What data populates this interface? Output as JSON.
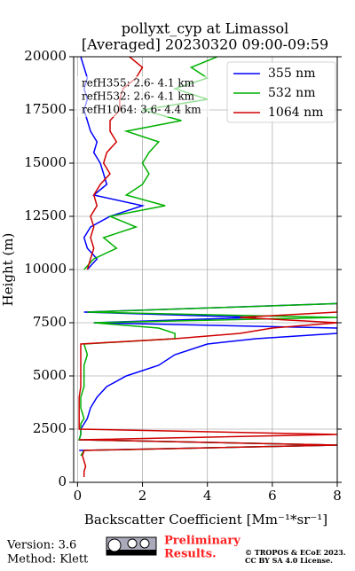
{
  "chart_data": {
    "type": "line",
    "orientation": "vertical",
    "title": "pollyxt_cyp at Limassol",
    "subtitle": "[Averaged] 20230320 09:00-09:59",
    "xlabel": "Backscatter Coefficient [Mm⁻¹*sr⁻¹]",
    "ylabel": "Height (m)",
    "xlim": [
      -0.12,
      8
    ],
    "xticks": [
      0,
      2,
      4,
      6,
      8
    ],
    "ylim": [
      0,
      20000
    ],
    "yticks": [
      0,
      2500,
      5000,
      7500,
      10000,
      12500,
      15000,
      17500,
      20000
    ],
    "grid": true,
    "legend": "upper right",
    "y": [
      250,
      500,
      750,
      1000,
      1250,
      1500,
      1750,
      2000,
      2250,
      2500,
      2750,
      3000,
      3500,
      4000,
      4500,
      5000,
      5500,
      6000,
      6500,
      6750,
      7000,
      7250,
      7500,
      7750,
      8000,
      8400,
      8750,
      10000,
      10500,
      11000,
      11500,
      12000,
      12500,
      13000,
      13500,
      14000,
      14500,
      15000,
      15500,
      16000,
      16500,
      17000,
      17500,
      18000,
      18500,
      19000,
      19500,
      20000
    ],
    "series": [
      {
        "name": "355 nm",
        "color": "#0000ff",
        "values": [
          null,
          null,
          null,
          null,
          null,
          0.05,
          8,
          0.05,
          0.1,
          0.1,
          0.2,
          0.3,
          0.4,
          0.6,
          0.9,
          1.5,
          2.5,
          3,
          4,
          5.5,
          8,
          8,
          0.5,
          5.5,
          0.2,
          8,
          null,
          0.3,
          0.6,
          0.3,
          0.2,
          0.4,
          1.0,
          2.0,
          0.5,
          0.9,
          0.8,
          0.7,
          0.5,
          0.6,
          0.4,
          0.3,
          0.2,
          0.3,
          0.2,
          0.3,
          0.2,
          0.1
        ]
      },
      {
        "name": "532 nm",
        "color": "#00b000",
        "values": [
          null,
          null,
          null,
          null,
          0.1,
          0.2,
          8,
          0.05,
          0.1,
          0.1,
          0.1,
          0.2,
          0.1,
          0.1,
          0.2,
          0.2,
          0.2,
          0.3,
          0.2,
          3,
          3,
          2.5,
          0.5,
          8,
          0.3,
          8,
          null,
          0.2,
          0.5,
          1.2,
          0.8,
          1.8,
          1.0,
          2.7,
          1.5,
          2.0,
          2.2,
          2.0,
          2.2,
          2.5,
          1.5,
          3.2,
          2.0,
          4.0,
          3.0,
          4.0,
          3.5,
          4.3
        ]
      },
      {
        "name": "1064 nm",
        "color": "#d00000",
        "values": [
          0.2,
          0.2,
          0.25,
          0.2,
          0.15,
          0.2,
          8,
          0.05,
          8,
          0.05,
          0.05,
          0.05,
          0.05,
          0.05,
          0.1,
          0.1,
          0.1,
          0.1,
          0.1,
          3,
          5,
          6,
          8,
          5,
          8,
          8,
          null,
          0.3,
          0.4,
          0.5,
          0.4,
          0.5,
          0.4,
          0.6,
          0.5,
          0.7,
          1.0,
          0.8,
          0.9,
          1.2,
          1.0,
          1.0,
          1.3,
          1.3,
          1.4,
          1.8,
          2.0,
          1.6
        ]
      }
    ],
    "annotations": [
      "refH355:  2.6- 4.1 km",
      "refH532:  2.6- 4.1 km",
      "refH1064:  3.6- 4.4 km"
    ],
    "footer": {
      "version": "Version: 3.6",
      "method": "Method: Klett",
      "notice": [
        "Preliminary",
        "Results."
      ],
      "copyright": [
        "© TROPOS & ECoE 2023.",
        "CC BY SA 4.0 License."
      ]
    }
  }
}
